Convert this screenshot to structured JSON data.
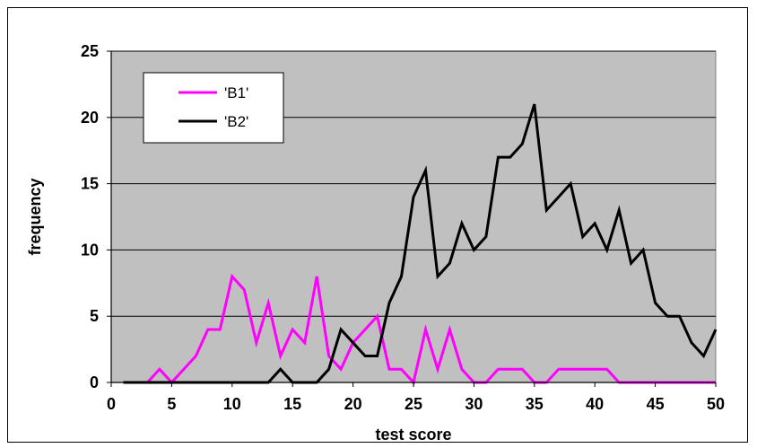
{
  "chart_data": {
    "type": "line",
    "title": "",
    "xlabel": "test score",
    "ylabel": "frequency",
    "xlim": [
      0,
      50
    ],
    "ylim": [
      0,
      25
    ],
    "x_ticks": [
      0,
      5,
      10,
      15,
      20,
      25,
      30,
      35,
      40,
      45,
      50
    ],
    "y_ticks": [
      0,
      5,
      10,
      15,
      20,
      25
    ],
    "grid": "horizontal",
    "plot_background": "#c0c0c0",
    "legend_position": "top-left",
    "x": [
      1,
      2,
      3,
      4,
      5,
      6,
      7,
      8,
      9,
      10,
      11,
      12,
      13,
      14,
      15,
      16,
      17,
      18,
      19,
      20,
      21,
      22,
      23,
      24,
      25,
      26,
      27,
      28,
      29,
      30,
      31,
      32,
      33,
      34,
      35,
      36,
      37,
      38,
      39,
      40,
      41,
      42,
      43,
      44,
      45,
      46,
      47,
      48,
      49,
      50
    ],
    "series": [
      {
        "name": "'B1'",
        "color": "#ff00ff",
        "values": [
          0,
          0,
          0,
          1,
          0,
          1,
          2,
          4,
          4,
          8,
          7,
          3,
          6,
          2,
          4,
          3,
          8,
          2,
          1,
          3,
          4,
          5,
          1,
          1,
          0,
          4,
          1,
          4,
          1,
          0,
          0,
          1,
          1,
          1,
          0,
          0,
          1,
          1,
          1,
          1,
          1,
          0,
          0,
          0,
          0,
          0,
          0,
          0,
          0,
          0
        ]
      },
      {
        "name": "'B2'",
        "color": "#000000",
        "values": [
          0,
          0,
          0,
          0,
          0,
          0,
          0,
          0,
          0,
          0,
          0,
          0,
          0,
          1,
          0,
          0,
          0,
          1,
          4,
          3,
          2,
          2,
          6,
          8,
          14,
          16,
          8,
          9,
          12,
          10,
          11,
          17,
          17,
          18,
          21,
          13,
          14,
          15,
          11,
          12,
          10,
          13,
          9,
          10,
          6,
          5,
          5,
          3,
          2,
          4
        ]
      }
    ]
  }
}
